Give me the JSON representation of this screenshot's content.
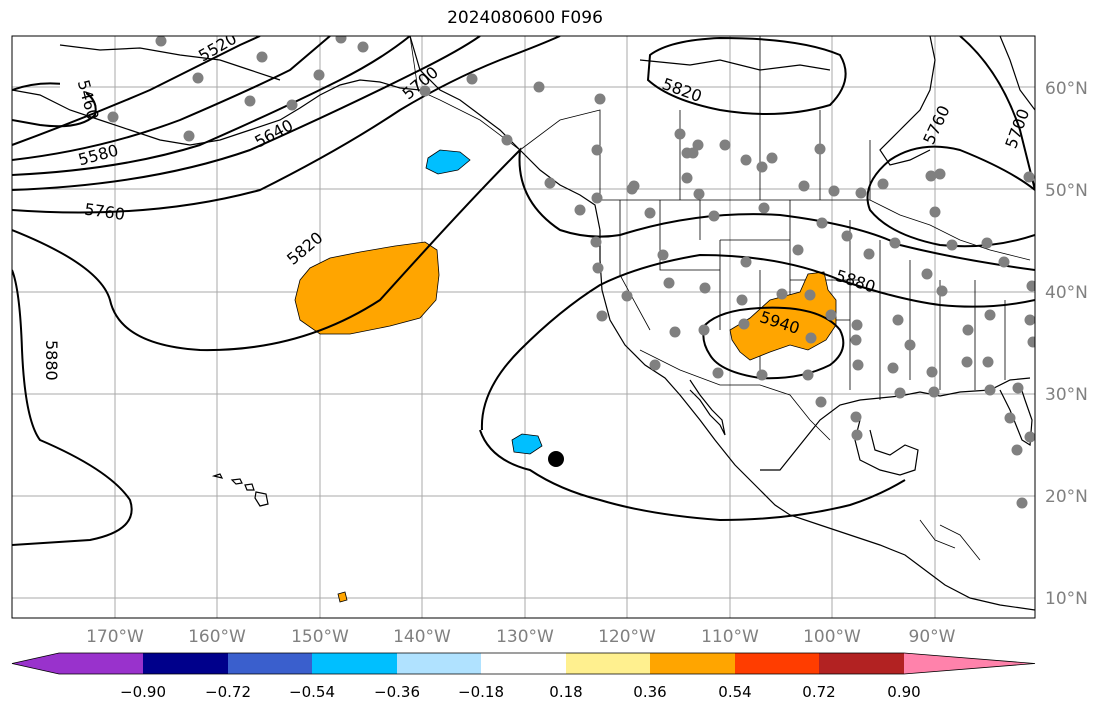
{
  "title": "2024080600 F096",
  "map": {
    "lon_ticks": [
      "170°W",
      "160°W",
      "150°W",
      "140°W",
      "130°W",
      "120°W",
      "110°W",
      "100°W",
      "90°W"
    ],
    "lat_ticks": [
      "60°N",
      "50°N",
      "40°N",
      "30°N",
      "20°N",
      "10°N"
    ],
    "contour_labels": [
      "5460",
      "5520",
      "5580",
      "5640",
      "5700",
      "5760",
      "5820",
      "5820",
      "5880",
      "5880",
      "5940",
      "5760",
      "5700"
    ],
    "colors": {
      "positive_shading": "#ffa500",
      "negative_shading": "#00bfff",
      "station_marker": "#808080",
      "highlight_marker": "#000000"
    }
  },
  "colorbar": {
    "colors": [
      "#9932cc",
      "#00008b",
      "#3a5fcd",
      "#00bfff",
      "#b0e2ff",
      "#ffffff",
      "#fff08f",
      "#ffa500",
      "#ff3d00",
      "#b22222",
      "#ff82ab"
    ],
    "tick_labels": [
      "−0.90",
      "−0.72",
      "−0.54",
      "−0.36",
      "−0.18",
      "0.18",
      "0.36",
      "0.54",
      "0.72",
      "0.90"
    ]
  }
}
